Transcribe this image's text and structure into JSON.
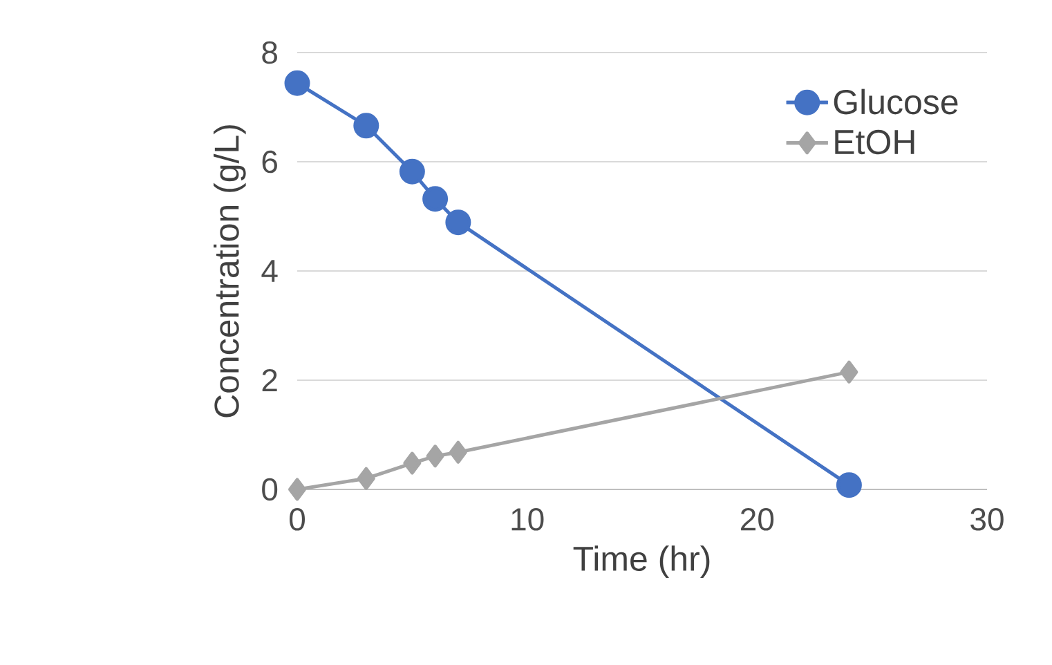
{
  "chart_data": {
    "type": "line",
    "xlabel": "Time (hr)",
    "ylabel": "Concentration (g/L)",
    "xlim": [
      0,
      30
    ],
    "xticks": [
      0,
      10,
      20,
      30
    ],
    "ylim": [
      0,
      8
    ],
    "yticks": [
      0,
      2,
      4,
      6,
      8
    ],
    "grid": "y",
    "legend": "top right",
    "series": [
      {
        "name": "Glucose",
        "color": "#4472c4",
        "marker": "circle",
        "x": [
          0,
          3,
          5,
          6,
          7,
          24
        ],
        "values": [
          7.44,
          6.66,
          5.82,
          5.32,
          4.89,
          0.08
        ]
      },
      {
        "name": "EtOH",
        "color": "#a5a5a5",
        "marker": "diamond",
        "x": [
          0,
          3,
          5,
          6,
          7,
          24
        ],
        "values": [
          0,
          0.2,
          0.48,
          0.61,
          0.68,
          2.15
        ]
      }
    ]
  }
}
